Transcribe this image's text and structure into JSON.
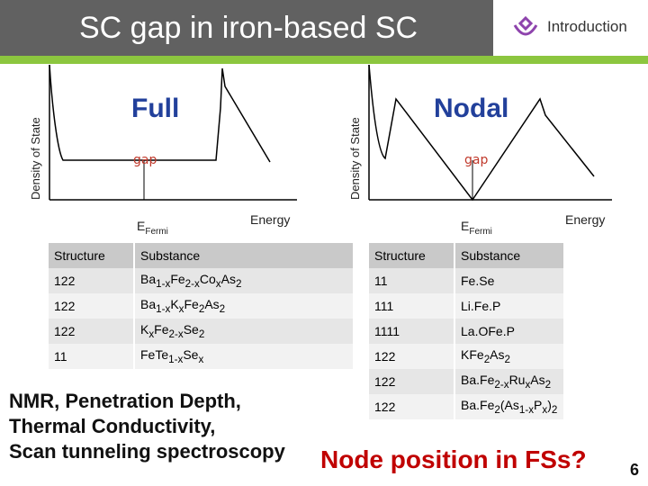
{
  "header": {
    "title": "SC gap in iron-based SC",
    "section": "Introduction"
  },
  "plot_full": {
    "ylabel": "Density of State",
    "label": "Full",
    "gap": "gap",
    "efermi": "E",
    "efermi_sub": "Fermi",
    "xlabel": "Energy"
  },
  "plot_nodal": {
    "ylabel": "Density of State",
    "label": "Nodal",
    "gap": "gap",
    "efermi": "E",
    "efermi_sub": "Fermi",
    "xlabel": "Energy"
  },
  "table_a": {
    "headers": [
      "Structure",
      "Substance"
    ],
    "rows": [
      {
        "structure": "122",
        "substance": "Ba1-xFe2-xCoxAs2"
      },
      {
        "structure": "122",
        "substance": "Ba1-xKxFe2As2"
      },
      {
        "structure": "122",
        "substance": "KxFe2-xSe2"
      },
      {
        "structure": "11",
        "substance": "FeTe1-xSex"
      }
    ]
  },
  "table_b": {
    "headers": [
      "Structure",
      "Substance"
    ],
    "rows": [
      {
        "structure": "11",
        "substance": "FeSe"
      },
      {
        "structure": "111",
        "substance": "LiFeP"
      },
      {
        "structure": "1111",
        "substance": "LaOFeP"
      },
      {
        "structure": "122",
        "substance": "KFe2As2"
      },
      {
        "structure": "122",
        "substance": "BaFe2-xRuxAs2"
      },
      {
        "structure": "122",
        "substance": "BaFe2(As1-xPx)2"
      }
    ]
  },
  "methods": {
    "line1": "NMR, Penetration Depth,",
    "line2": "Thermal Conductivity,",
    "line3": "Scan tunneling spectroscopy"
  },
  "question": "Node position in FSs?",
  "page_number": "6",
  "colors": {
    "header_bg": "#616161",
    "accent_green": "#8cc63f",
    "title_blue": "#22409b",
    "question_red": "#c00000"
  }
}
